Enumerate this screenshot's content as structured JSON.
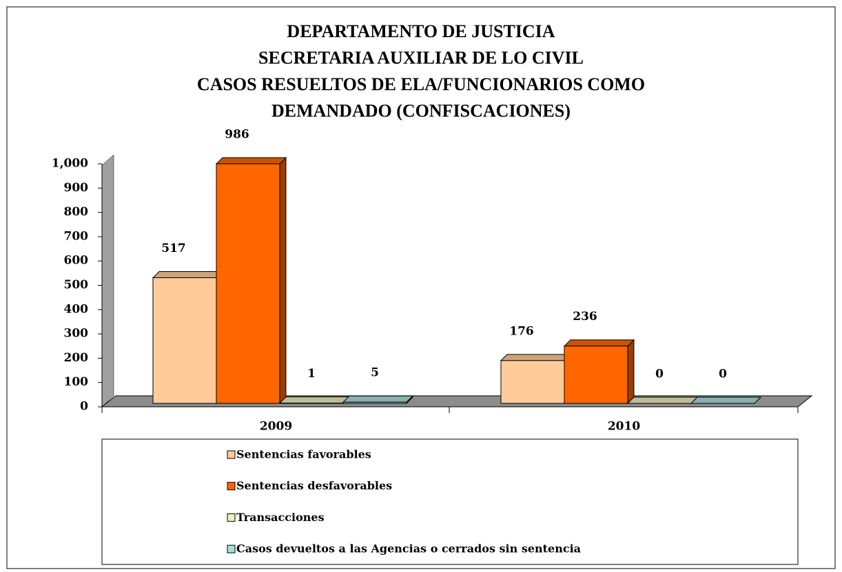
{
  "chart_data": {
    "type": "bar3d",
    "title": [
      "DEPARTAMENTO DE JUSTICIA",
      "SECRETARIA AUXILIAR DE LO CIVIL",
      "CASOS RESUELTOS DE ELA/FUNCIONARIOS COMO",
      "DEMANDADO (CONFISCACIONES)"
    ],
    "categories": [
      "2009",
      "2010"
    ],
    "series": [
      {
        "name": "Sentencias favorables",
        "color": "#ffcc99",
        "values": [
          517,
          176
        ]
      },
      {
        "name": "Sentencias desfavorables",
        "color": "#ff6600",
        "values": [
          986,
          236
        ]
      },
      {
        "name": "Transacciones",
        "color": "#eeeebb",
        "values": [
          1,
          0
        ]
      },
      {
        "name": "Casos devueltos a las Agencias o cerrados sin sentencia",
        "color": "#aadddd",
        "values": [
          5,
          0
        ]
      }
    ],
    "ylim": [
      0,
      1000
    ],
    "yticks": [
      0,
      100,
      200,
      300,
      400,
      500,
      600,
      700,
      800,
      900,
      {
        "value": 1000,
        "label": "1,000"
      }
    ],
    "legend": "bottom"
  }
}
